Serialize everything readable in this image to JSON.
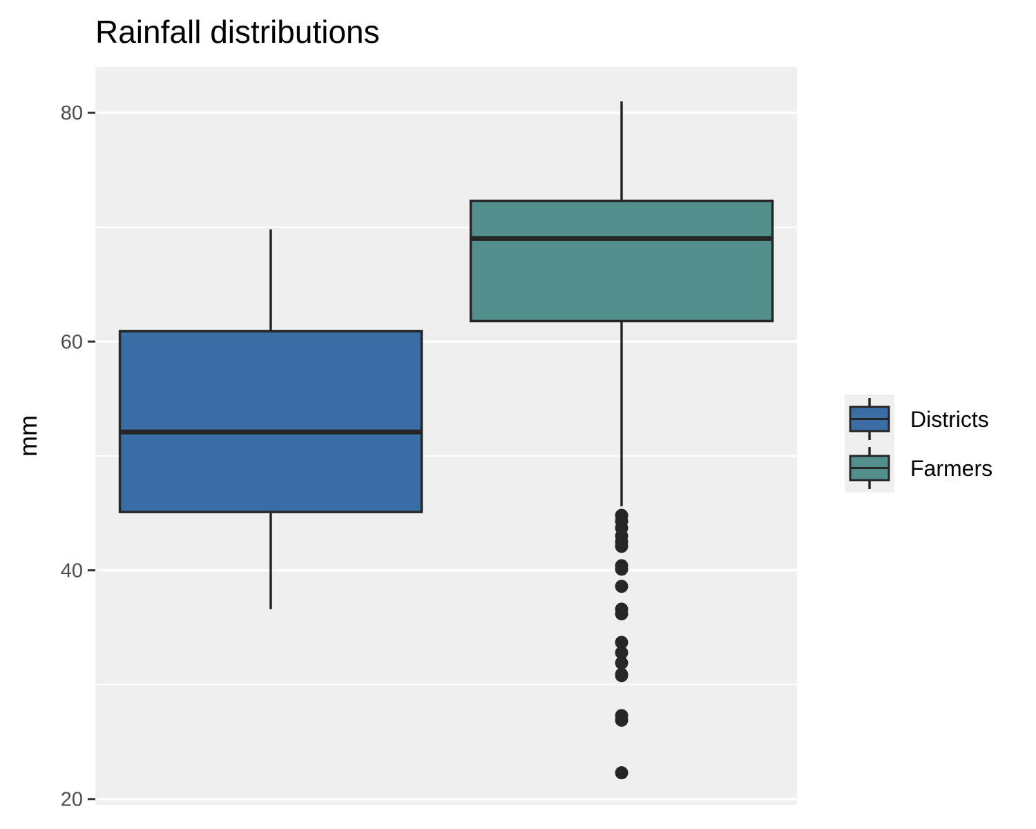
{
  "chart_data": {
    "type": "boxplot",
    "title": "Rainfall distributions",
    "xlabel": "",
    "ylabel": "mm",
    "ylim": [
      19.5,
      84
    ],
    "yticks": [
      20,
      40,
      60,
      80
    ],
    "grid": true,
    "legend_position": "right",
    "series": [
      {
        "name": "Districts",
        "color": "#3A6EA5",
        "whisker_low": 36.6,
        "q1": 45.1,
        "median": 52.1,
        "q3": 60.9,
        "whisker_high": 69.8,
        "outliers": []
      },
      {
        "name": "Farmers",
        "color": "#528F8D",
        "whisker_low": 45.6,
        "q1": 61.8,
        "median": 69.0,
        "q3": 72.3,
        "whisker_high": 81.0,
        "outliers": [
          44.8,
          44.3,
          43.7,
          43.0,
          42.5,
          42.1,
          40.4,
          40.1,
          38.6,
          36.6,
          36.2,
          33.7,
          32.8,
          31.9,
          30.9,
          30.8,
          27.3,
          26.9,
          22.3
        ]
      }
    ]
  }
}
